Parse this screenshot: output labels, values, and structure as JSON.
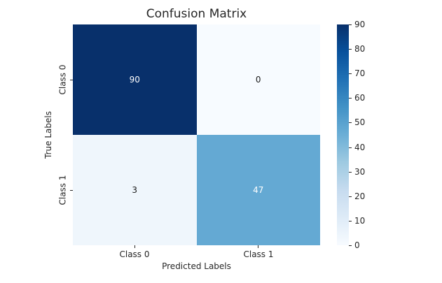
{
  "figure": {
    "background": "#ffffff",
    "text_color": "#262626"
  },
  "chart_data": {
    "type": "heatmap",
    "title": "Confusion Matrix",
    "xlabel": "Predicted Labels",
    "ylabel": "True Labels",
    "x_categories": [
      "Class 0",
      "Class 1"
    ],
    "y_categories": [
      "Class 0",
      "Class 1"
    ],
    "matrix": [
      [
        90,
        0
      ],
      [
        3,
        47
      ]
    ],
    "colormap": "Blues",
    "vmin": 0,
    "vmax": 90,
    "grid": false,
    "legend_position": "right-colorbar",
    "cells": [
      {
        "true_label": "Class 0",
        "predicted_label": "Class 0",
        "value": "90",
        "bg": "#08306b",
        "fg": "#ffffff"
      },
      {
        "true_label": "Class 0",
        "predicted_label": "Class 1",
        "value": "0",
        "bg": "#f7fbff",
        "fg": "#1a1a1a"
      },
      {
        "true_label": "Class 1",
        "predicted_label": "Class 0",
        "value": "3",
        "bg": "#eff6fc",
        "fg": "#1a1a1a"
      },
      {
        "true_label": "Class 1",
        "predicted_label": "Class 1",
        "value": "47",
        "bg": "#64a9d3",
        "fg": "#ffffff"
      }
    ],
    "colorbar": {
      "ticks": [
        "0",
        "10",
        "20",
        "30",
        "40",
        "50",
        "60",
        "70",
        "80",
        "90"
      ],
      "gradient_stops": [
        "#f7fbff 0%",
        "#deebf7 12.5%",
        "#c6dbef 25%",
        "#9ecae1 37.5%",
        "#6baed6 50%",
        "#4292c6 62.5%",
        "#2171b5 75%",
        "#08519c 87.5%",
        "#08306b 100%"
      ]
    }
  }
}
